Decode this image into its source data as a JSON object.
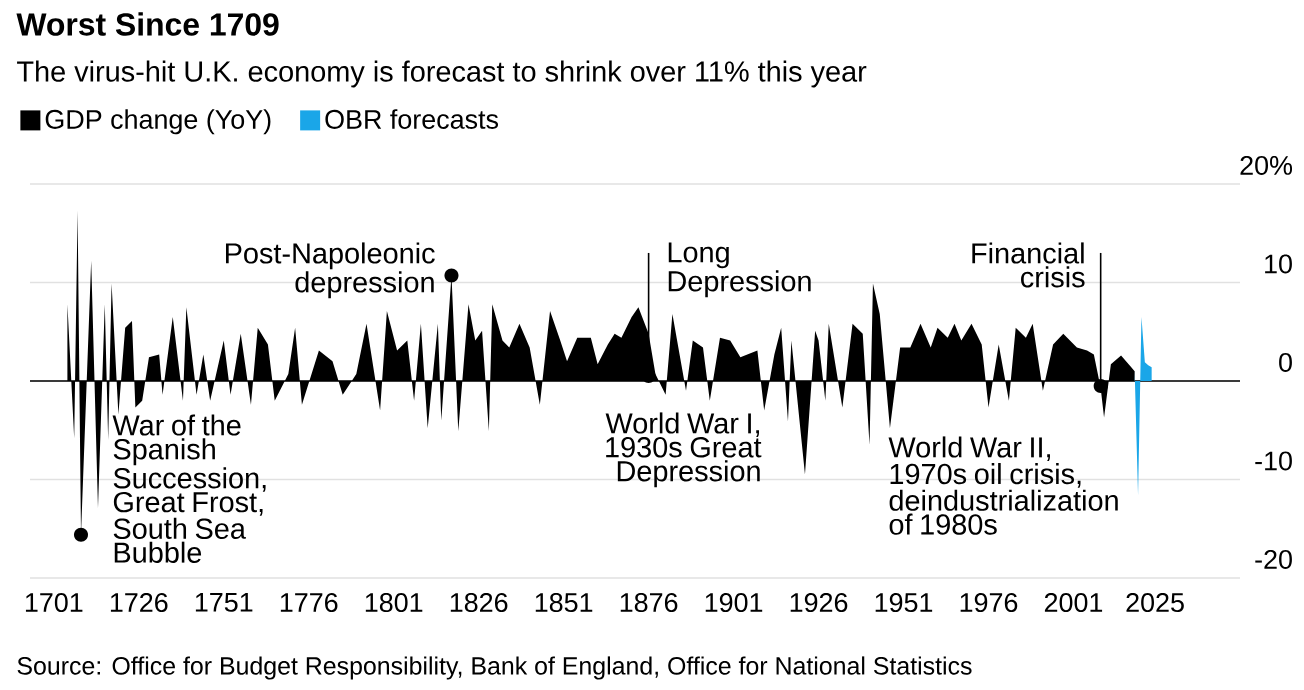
{
  "chart_data": {
    "type": "area",
    "title": "Worst Since 1709",
    "subtitle": "The virus-hit U.K. economy is forecast to shrink over 11% this year",
    "series": [
      {
        "name": "GDP change (YoY)",
        "color": "#000000",
        "x": [
          1705,
          1707,
          1708,
          1709,
          1712,
          1714,
          1716,
          1717,
          1718,
          1720,
          1722,
          1724,
          1725,
          1727,
          1729,
          1732,
          1733,
          1736,
          1739,
          1740,
          1743,
          1745,
          1747,
          1751,
          1753,
          1756,
          1759,
          1761,
          1764,
          1766,
          1770,
          1772,
          1774,
          1779,
          1783,
          1786,
          1790,
          1793,
          1797,
          1799,
          1802,
          1805,
          1807,
          1809,
          1811,
          1814,
          1815,
          1818,
          1820,
          1823,
          1825,
          1827,
          1829,
          1830,
          1833,
          1835,
          1838,
          1841,
          1844,
          1847,
          1850,
          1852,
          1855,
          1859,
          1861,
          1864,
          1866,
          1868,
          1871,
          1873,
          1876,
          1878,
          1881,
          1883,
          1887,
          1889,
          1892,
          1894,
          1897,
          1900,
          1903,
          1908,
          1910,
          1913,
          1915,
          1917,
          1918,
          1922,
          1925,
          1926,
          1928,
          1929,
          1933,
          1936,
          1939,
          1941,
          1942,
          1944,
          1947,
          1950,
          1953,
          1956,
          1959,
          1961,
          1964,
          1966,
          1968,
          1971,
          1974,
          1976,
          1979,
          1982,
          1984,
          1987,
          1989,
          1992,
          1995,
          1998,
          2002,
          2005,
          2007,
          2009,
          2010,
          2012,
          2015,
          2018,
          2019
        ],
        "values": [
          7.8,
          -5.8,
          17.3,
          -15.6,
          12.2,
          -12.9,
          7.8,
          -6,
          9.9,
          -3.4,
          5.4,
          6.1,
          -2.7,
          -2,
          2.4,
          2.7,
          -1.4,
          6.5,
          -2,
          7.5,
          -1.4,
          2.7,
          -2,
          4.1,
          -1.4,
          4.8,
          -2.4,
          5.4,
          3.7,
          -2,
          0.7,
          5.4,
          -2.4,
          3.1,
          2,
          -1.4,
          0.7,
          5.8,
          -3,
          7.1,
          3.1,
          4.1,
          -2,
          5.8,
          -4.8,
          5.8,
          -4,
          10.7,
          -5.1,
          7.8,
          4.1,
          5.1,
          -5.1,
          7.8,
          4.1,
          3.4,
          5.8,
          3.4,
          -2.4,
          7.1,
          4.1,
          2,
          4.4,
          4.4,
          1.7,
          3.7,
          4.8,
          4.4,
          6.5,
          7.5,
          4.8,
          0.7,
          -1.4,
          6.8,
          -1,
          4.1,
          3.4,
          -2,
          4.4,
          4.1,
          2.4,
          3.1,
          -3,
          2.7,
          5.4,
          -4.1,
          4.1,
          -9.5,
          5.1,
          4.1,
          -2,
          5.8,
          -2.7,
          5.8,
          4.8,
          -6.5,
          9.9,
          6.8,
          -4.8,
          3.4,
          3.4,
          5.8,
          3.4,
          5.4,
          4.4,
          5.8,
          4.1,
          5.8,
          3.7,
          -2.7,
          3.7,
          -2,
          5.4,
          4.4,
          5.8,
          -1,
          3.7,
          4.8,
          3.4,
          3.1,
          2.7,
          -0.7,
          -3.7,
          1.7,
          2.6,
          1.4,
          1
        ]
      },
      {
        "name": "OBR forecasts",
        "color": "#1aa6e8",
        "x": [
          2019,
          2020,
          2021,
          2022,
          2023,
          2024
        ],
        "values": [
          1,
          -11.6,
          6.5,
          1.9,
          1.6,
          1.4
        ]
      }
    ],
    "xlim": [
      1694,
      2050
    ],
    "xticks": [
      1701,
      1726,
      1751,
      1776,
      1801,
      1826,
      1851,
      1876,
      1901,
      1926,
      1951,
      1976,
      2001,
      2025
    ],
    "ylim": [
      -20,
      20
    ],
    "yticks": [
      -20,
      -10,
      0,
      10,
      {
        "value": 20,
        "label": "20%"
      }
    ],
    "grid": "y",
    "legend": "top left",
    "annotations": [
      {
        "text": "War of the Spanish Succession, Great Frost, South Sea Bubble",
        "x": 1709,
        "y": -15.6
      },
      {
        "text": "Post-Napoleonic depression",
        "x": 1818,
        "y": 10.7
      },
      {
        "text": "Long Depression",
        "x": 1876,
        "y": 0.5
      },
      "World War I, 1930s Great Depression",
      {
        "text": "Financial crisis",
        "x": 2009,
        "y": -0.5
      },
      "World War II, 1970s oil crisis, deindustrialization of 1980s",
      "Source: Office for Budget Responsibility, Bank of England, Office for National Statistics"
    ]
  }
}
